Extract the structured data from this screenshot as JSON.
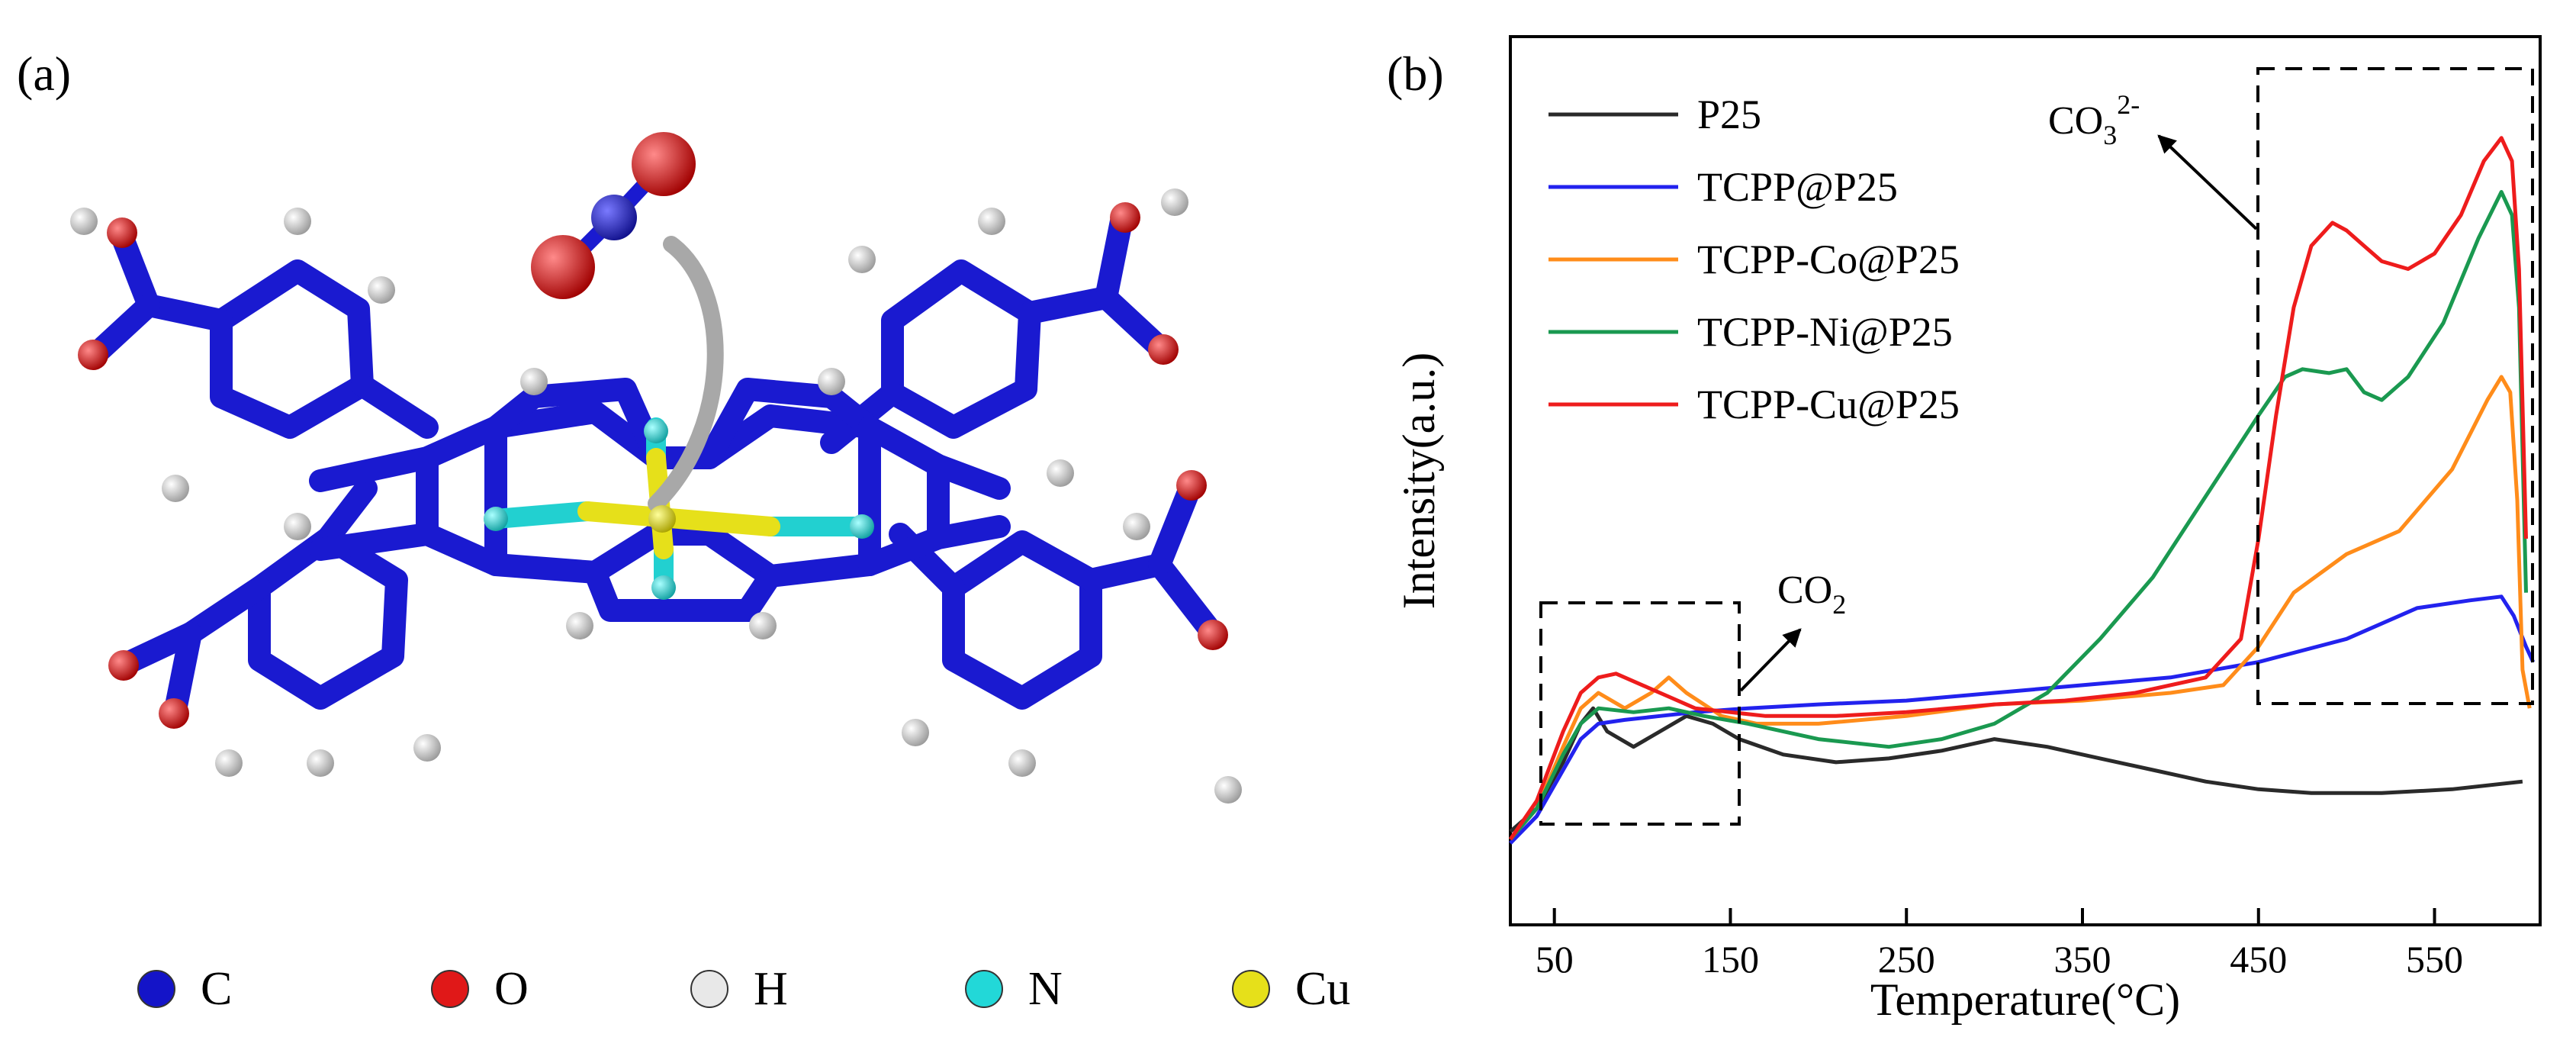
{
  "panel_a": {
    "label": "(a)",
    "legend": [
      {
        "symbol": "C",
        "color": "#1414c8"
      },
      {
        "symbol": "O",
        "color": "#e01818"
      },
      {
        "symbol": "H",
        "color": "#e8e8e8"
      },
      {
        "symbol": "N",
        "color": "#22d8d8"
      },
      {
        "symbol": "Cu",
        "color": "#e6e01a"
      }
    ]
  },
  "panel_b": {
    "label": "(b)",
    "annotations": {
      "co2": {
        "base": "CO",
        "sub": "2"
      },
      "co3": {
        "base": "CO",
        "sub": "3",
        "sup": "2-"
      }
    }
  },
  "chart_data": {
    "type": "line",
    "xlabel": "Temperature(°C)",
    "ylabel": "Intensity(a.u.)",
    "xlim": [
      25,
      610
    ],
    "ylim": [
      0,
      100
    ],
    "xticks": [
      50,
      150,
      250,
      350,
      450,
      550
    ],
    "legend_position": "top-left",
    "grid": false,
    "series": [
      {
        "name": "P25",
        "color": "#2a2a2a",
        "points": [
          [
            25,
            2
          ],
          [
            40,
            5
          ],
          [
            55,
            11
          ],
          [
            65,
            16
          ],
          [
            72,
            18
          ],
          [
            80,
            15
          ],
          [
            95,
            13
          ],
          [
            110,
            15
          ],
          [
            125,
            17
          ],
          [
            140,
            16
          ],
          [
            155,
            14
          ],
          [
            180,
            12
          ],
          [
            210,
            11
          ],
          [
            240,
            11.5
          ],
          [
            270,
            12.5
          ],
          [
            300,
            14
          ],
          [
            330,
            13
          ],
          [
            360,
            11.5
          ],
          [
            390,
            10
          ],
          [
            420,
            8.5
          ],
          [
            450,
            7.5
          ],
          [
            480,
            7
          ],
          [
            520,
            7
          ],
          [
            560,
            7.5
          ],
          [
            600,
            8.5
          ]
        ]
      },
      {
        "name": "TCPP@P25",
        "color": "#2222ee",
        "points": [
          [
            25,
            0.5
          ],
          [
            40,
            4
          ],
          [
            55,
            10
          ],
          [
            65,
            14
          ],
          [
            75,
            16
          ],
          [
            90,
            16.5
          ],
          [
            110,
            17
          ],
          [
            130,
            17.5
          ],
          [
            160,
            18
          ],
          [
            200,
            18.5
          ],
          [
            250,
            19
          ],
          [
            300,
            20
          ],
          [
            350,
            21
          ],
          [
            400,
            22
          ],
          [
            450,
            24
          ],
          [
            500,
            27
          ],
          [
            540,
            31
          ],
          [
            570,
            32
          ],
          [
            588,
            32.5
          ],
          [
            595,
            30
          ],
          [
            602,
            26
          ],
          [
            606,
            24
          ]
        ]
      },
      {
        "name": "TCPP-Co@P25",
        "color": "#ff8c1a",
        "points": [
          [
            25,
            1
          ],
          [
            40,
            5
          ],
          [
            55,
            13
          ],
          [
            65,
            18
          ],
          [
            75,
            20
          ],
          [
            90,
            18
          ],
          [
            105,
            20
          ],
          [
            115,
            22
          ],
          [
            125,
            20
          ],
          [
            145,
            17
          ],
          [
            165,
            16
          ],
          [
            200,
            16
          ],
          [
            250,
            17
          ],
          [
            300,
            18.5
          ],
          [
            350,
            19
          ],
          [
            400,
            20
          ],
          [
            430,
            21
          ],
          [
            450,
            26
          ],
          [
            470,
            33
          ],
          [
            500,
            38
          ],
          [
            530,
            41
          ],
          [
            560,
            49
          ],
          [
            580,
            58
          ],
          [
            588,
            61
          ],
          [
            593,
            59
          ],
          [
            597,
            45
          ],
          [
            600,
            23
          ],
          [
            604,
            18
          ]
        ]
      },
      {
        "name": "TCPP-Ni@P25",
        "color": "#1a9950",
        "points": [
          [
            25,
            1
          ],
          [
            40,
            5
          ],
          [
            55,
            12
          ],
          [
            65,
            16
          ],
          [
            75,
            18
          ],
          [
            95,
            17.5
          ],
          [
            115,
            18
          ],
          [
            135,
            17
          ],
          [
            160,
            16
          ],
          [
            200,
            14
          ],
          [
            240,
            13
          ],
          [
            270,
            14
          ],
          [
            300,
            16
          ],
          [
            330,
            20
          ],
          [
            360,
            27
          ],
          [
            390,
            35
          ],
          [
            410,
            42
          ],
          [
            430,
            49
          ],
          [
            450,
            56
          ],
          [
            465,
            61
          ],
          [
            475,
            62
          ],
          [
            490,
            61.5
          ],
          [
            500,
            62
          ],
          [
            510,
            59
          ],
          [
            520,
            58
          ],
          [
            535,
            61
          ],
          [
            555,
            68
          ],
          [
            575,
            79
          ],
          [
            588,
            85
          ],
          [
            594,
            82
          ],
          [
            598,
            70
          ],
          [
            602,
            33
          ]
        ]
      },
      {
        "name": "TCPP-Cu@P25",
        "color": "#ee1c1c",
        "points": [
          [
            25,
            1
          ],
          [
            40,
            6
          ],
          [
            55,
            15
          ],
          [
            65,
            20
          ],
          [
            75,
            22
          ],
          [
            85,
            22.5
          ],
          [
            100,
            21
          ],
          [
            115,
            19.5
          ],
          [
            130,
            18
          ],
          [
            150,
            17.5
          ],
          [
            170,
            17
          ],
          [
            210,
            17
          ],
          [
            250,
            17.5
          ],
          [
            300,
            18.5
          ],
          [
            340,
            19
          ],
          [
            380,
            20
          ],
          [
            420,
            22
          ],
          [
            440,
            27
          ],
          [
            450,
            40
          ],
          [
            460,
            56
          ],
          [
            470,
            70
          ],
          [
            480,
            78
          ],
          [
            492,
            81
          ],
          [
            500,
            80
          ],
          [
            510,
            78
          ],
          [
            520,
            76
          ],
          [
            535,
            75
          ],
          [
            550,
            77
          ],
          [
            565,
            82
          ],
          [
            578,
            89
          ],
          [
            588,
            92
          ],
          [
            594,
            89
          ],
          [
            598,
            75
          ],
          [
            602,
            40
          ]
        ]
      }
    ]
  }
}
